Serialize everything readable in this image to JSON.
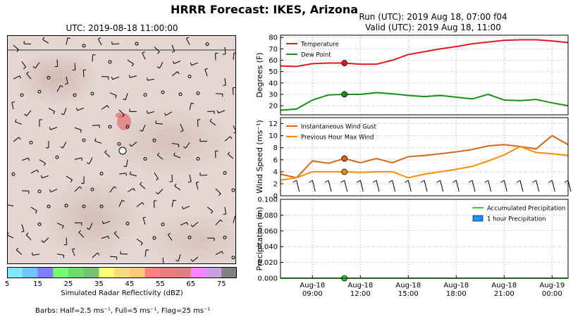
{
  "title": "HRRR Forecast: IKES, Arizona",
  "map": {
    "title": "UTC: 2019-08-18 11:00:00",
    "colorbar_label": "Simulated Radar Reflectivity (dBZ)",
    "colorbar_ticks": [
      "5",
      "15",
      "25",
      "35",
      "45",
      "55",
      "65",
      "75"
    ],
    "colorbar_colors": [
      "#7de8ff",
      "#6ec5fd",
      "#7f7ffb",
      "#74fd72",
      "#6fdb6b",
      "#74c177",
      "#fdff76",
      "#f4dc7c",
      "#fdc87a",
      "#fd8080",
      "#e97c7c",
      "#df7f7e",
      "#fd82fd",
      "#c8a0e0",
      "#808080"
    ]
  },
  "run_title": [
    "Run (UTC): 2019 Aug 18, 07:00 f04",
    "Valid (UTC): 2019 Aug 18, 11:00"
  ],
  "barb_note": "Barbs: Half=2.5 ms⁻¹, Full=5 ms⁻¹, Flag=25 ms⁻¹",
  "chart_data": [
    {
      "type": "line",
      "ylabel": "Degrees (F)",
      "ylim": [
        12,
        82
      ],
      "yticks": [
        20,
        30,
        40,
        50,
        60,
        70,
        80
      ],
      "x_hours": [
        7,
        8,
        9,
        10,
        11,
        12,
        13,
        14,
        15,
        16,
        17,
        18,
        19,
        20,
        21,
        22,
        23,
        24,
        25
      ],
      "series": [
        {
          "name": "Temperature",
          "color": "#e31a1c",
          "values": [
            55,
            54.5,
            57,
            57.5,
            57.5,
            56.5,
            56.5,
            60,
            65,
            67.5,
            70,
            72,
            74.5,
            76,
            77.5,
            78,
            78,
            77,
            75.5
          ]
        },
        {
          "name": "Dew Point",
          "color": "#198c19",
          "values": [
            16,
            17,
            25,
            29.5,
            30,
            30,
            31.5,
            30.5,
            29,
            28,
            29,
            27.5,
            26,
            30,
            25,
            24.5,
            25.5,
            22.5,
            20
          ]
        }
      ],
      "legend": "top-left",
      "marker_hour": 11
    },
    {
      "type": "line",
      "ylabel": "Wind Speed (ms⁻¹)",
      "ylim": [
        0,
        13
      ],
      "yticks": [
        0,
        2,
        4,
        6,
        8,
        10,
        12
      ],
      "x_hours": [
        7,
        8,
        9,
        10,
        11,
        12,
        13,
        14,
        15,
        16,
        17,
        18,
        19,
        20,
        21,
        22,
        23,
        24,
        25
      ],
      "series": [
        {
          "name": "Instantaneous Wind Gust",
          "color": "#d2691e",
          "values": [
            3.6,
            3,
            5.8,
            5.4,
            6.2,
            5.5,
            6.2,
            5.5,
            6.5,
            6.7,
            7,
            7.3,
            7.7,
            8.3,
            8.5,
            8.2,
            7.8,
            10,
            8.5
          ]
        },
        {
          "name": "Previous Hour Max Wind",
          "color": "#ff8c00",
          "values": [
            2.6,
            3,
            4,
            4,
            4,
            3.9,
            4,
            4,
            3,
            3.6,
            4,
            4.4,
            4.9,
            5.8,
            6.8,
            8.2,
            7.2,
            7,
            6.7
          ]
        }
      ],
      "legend": "top-left",
      "marker_hour": 11
    },
    {
      "type": "line",
      "ylabel": "Precipitation (in)",
      "ylim": [
        0,
        0.1
      ],
      "yticks": [
        "0.000",
        "0.020",
        "0.040",
        "0.060",
        "0.080",
        "0.100"
      ],
      "x_hours": [
        7,
        8,
        9,
        10,
        11,
        12,
        13,
        14,
        15,
        16,
        17,
        18,
        19,
        20,
        21,
        22,
        23,
        24,
        25
      ],
      "series": [
        {
          "name": "Accumulated Precipitation",
          "color": "#32cd32",
          "values": [
            0,
            0,
            0,
            0,
            0,
            0,
            0,
            0,
            0,
            0,
            0,
            0,
            0,
            0,
            0,
            0,
            0,
            0,
            0
          ]
        }
      ],
      "bar_series": {
        "name": "1 hour Precipitation",
        "color": "#1e90ff",
        "values": []
      },
      "legend": "top-right",
      "marker_hour": 11
    }
  ],
  "x_axis": {
    "ticks": [
      {
        "hour": 9,
        "l1": "Aug-18",
        "l2": "09:00"
      },
      {
        "hour": 12,
        "l1": "Aug-18",
        "l2": "12:00"
      },
      {
        "hour": 15,
        "l1": "Aug-18",
        "l2": "15:00"
      },
      {
        "hour": 18,
        "l1": "Aug-18",
        "l2": "18:00"
      },
      {
        "hour": 21,
        "l1": "Aug-18",
        "l2": "21:00"
      },
      {
        "hour": 24,
        "l1": "Aug-19",
        "l2": "00:00"
      }
    ]
  }
}
